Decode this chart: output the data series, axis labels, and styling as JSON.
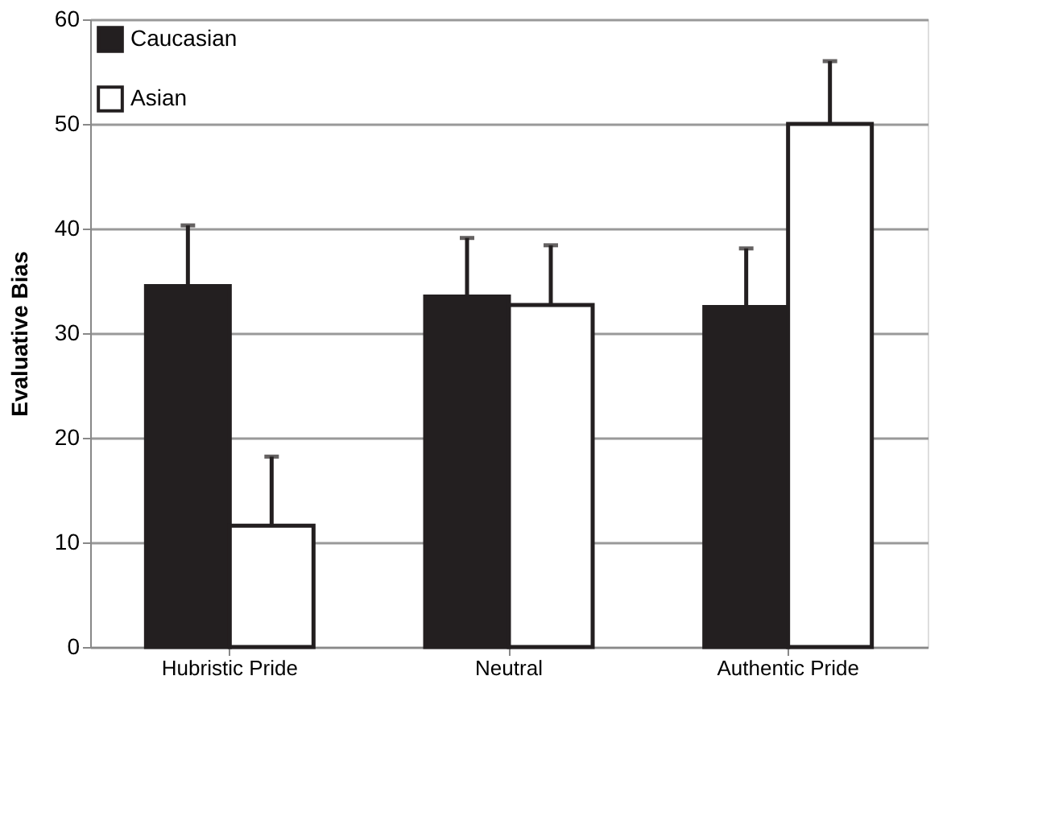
{
  "chart_data": {
    "type": "bar",
    "ylabel": "Evaluative Bias",
    "categories": [
      "Hubristic Pride",
      "Neutral",
      "Authentic Pride"
    ],
    "series": [
      {
        "name": "Caucasian",
        "color": "#231f20",
        "values": [
          34.5,
          33.5,
          32.5
        ],
        "errors": [
          [
            34.5,
            40.3
          ],
          [
            33.5,
            39.1
          ],
          [
            32.5,
            38.1
          ]
        ]
      },
      {
        "name": "Asian",
        "color": "#ffffff",
        "values": [
          11.6,
          32.7,
          50.0
        ],
        "errors": [
          [
            11.6,
            18.2
          ],
          [
            32.7,
            38.4
          ],
          [
            50.0,
            56.0
          ]
        ]
      }
    ],
    "ylim": [
      0,
      60
    ],
    "yticks": [
      0,
      10,
      20,
      30,
      40,
      50,
      60
    ],
    "grid": "y",
    "legend": "top left"
  }
}
